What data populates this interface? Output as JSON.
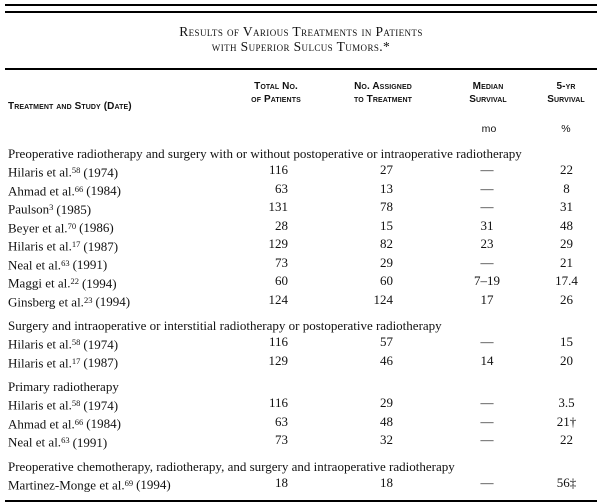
{
  "title": {
    "line1": "Results of Various Treatments in Patients",
    "line2": "with Superior Sulcus Tumors.*"
  },
  "header": {
    "col_study": "Treatment and Study (Date)",
    "col_total_l1": "Total No.",
    "col_total_l2": "of Patients",
    "col_assigned_l1": "No. Assigned",
    "col_assigned_l2": "to Treatment",
    "col_median_l1": "Median",
    "col_median_l2": "Survival",
    "col_5yr_l1": "5-yr",
    "col_5yr_l2": "Survival",
    "unit_median": "mo",
    "unit_5yr": "%"
  },
  "colors": {
    "ink": "#111111",
    "background": "#ffffff"
  },
  "sections": [
    {
      "heading": "Preoperative radiotherapy and surgery with or without postoperative or intraoperative radiotherapy",
      "rows": [
        {
          "study": "Hilaris et al.",
          "ref": "58",
          "date": "(1974)",
          "total": "116",
          "assigned": "27",
          "median": "—",
          "five_yr": "22"
        },
        {
          "study": "Ahmad et al.",
          "ref": "66",
          "date": "(1984)",
          "total": "63",
          "assigned": "13",
          "median": "—",
          "five_yr": "8"
        },
        {
          "study": "Paulson",
          "ref": "3",
          "date": "(1985)",
          "total": "131",
          "assigned": "78",
          "median": "—",
          "five_yr": "31"
        },
        {
          "study": "Beyer et al.",
          "ref": "70",
          "date": "(1986)",
          "total": "28",
          "assigned": "15",
          "median": "31",
          "five_yr": "48"
        },
        {
          "study": "Hilaris et al.",
          "ref": "17",
          "date": "(1987)",
          "total": "129",
          "assigned": "82",
          "median": "23",
          "five_yr": "29"
        },
        {
          "study": "Neal et al.",
          "ref": "63",
          "date": "(1991)",
          "total": "73",
          "assigned": "29",
          "median": "—",
          "five_yr": "21"
        },
        {
          "study": "Maggi et al.",
          "ref": "22",
          "date": "(1994)",
          "total": "60",
          "assigned": "60",
          "median": "7–19",
          "five_yr": "17.4"
        },
        {
          "study": "Ginsberg et al.",
          "ref": "23",
          "date": "(1994)",
          "total": "124",
          "assigned": "124",
          "median": "17",
          "five_yr": "26"
        }
      ]
    },
    {
      "heading": "Surgery and intraoperative or interstitial radiotherapy or postoperative radiotherapy",
      "rows": [
        {
          "study": "Hilaris et al.",
          "ref": "58",
          "date": "(1974)",
          "total": "116",
          "assigned": "57",
          "median": "—",
          "five_yr": "15"
        },
        {
          "study": "Hilaris et al.",
          "ref": "17",
          "date": "(1987)",
          "total": "129",
          "assigned": "46",
          "median": "14",
          "five_yr": "20"
        }
      ]
    },
    {
      "heading": "Primary radiotherapy",
      "rows": [
        {
          "study": "Hilaris et al.",
          "ref": "58",
          "date": "(1974)",
          "total": "116",
          "assigned": "29",
          "median": "—",
          "five_yr": "3.5"
        },
        {
          "study": "Ahmad et al.",
          "ref": "66",
          "date": "(1984)",
          "total": "63",
          "assigned": "48",
          "median": "—",
          "five_yr": "21†"
        },
        {
          "study": "Neal et al.",
          "ref": "63",
          "date": "(1991)",
          "total": "73",
          "assigned": "32",
          "median": "—",
          "five_yr": "22"
        }
      ]
    },
    {
      "heading": "Preoperative chemotherapy, radiotherapy, and surgery and intraoperative radiotherapy",
      "rows": [
        {
          "study": "Martinez-Monge et al.",
          "ref": "69",
          "date": "(1994)",
          "total": "18",
          "assigned": "18",
          "median": "—",
          "five_yr": "56‡"
        }
      ]
    }
  ]
}
